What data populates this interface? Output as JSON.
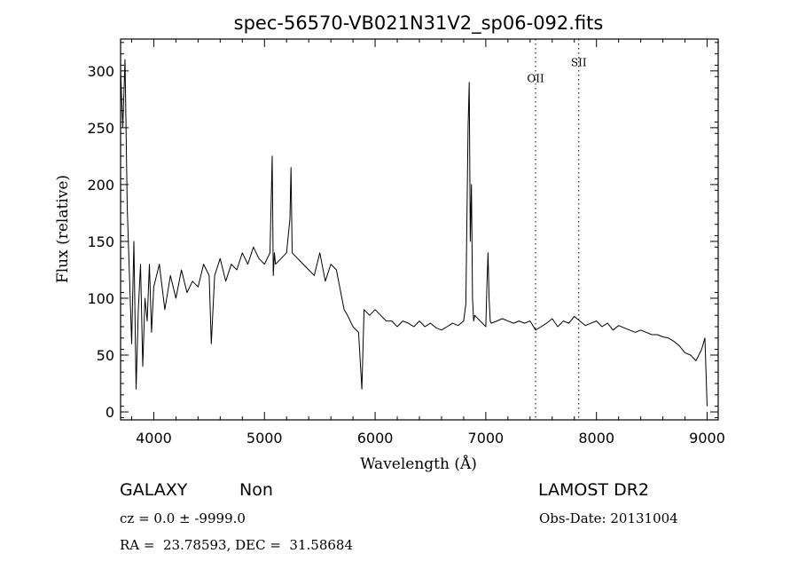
{
  "chart_data": {
    "type": "line",
    "title": "spec-56570-VB021N31V2_sp06-092.fits",
    "xlabel": "Wavelength (Å)",
    "ylabel": "Flux (relative)",
    "xlim": [
      3700,
      9100
    ],
    "ylim": [
      -7,
      328
    ],
    "xticks": [
      4000,
      5000,
      6000,
      7000,
      8000,
      9000
    ],
    "yticks": [
      0,
      50,
      100,
      150,
      200,
      250,
      300
    ],
    "grid": false,
    "line_color": "#000000",
    "annotations": [
      {
        "label": "OII",
        "x": 7450,
        "label_y": 290
      },
      {
        "label": "SII",
        "x": 7840,
        "label_y": 304
      }
    ],
    "series": [
      {
        "x": [
          3700,
          3720,
          3740,
          3760,
          3780,
          3800,
          3820,
          3840,
          3860,
          3880,
          3900,
          3920,
          3940,
          3960,
          3980,
          4000,
          4050,
          4100,
          4150,
          4200,
          4250,
          4300,
          4350,
          4400,
          4450,
          4500,
          4520,
          4550,
          4600,
          4650,
          4700,
          4750,
          4800,
          4850,
          4900,
          4950,
          5000,
          5050,
          5070,
          5080,
          5090,
          5100,
          5150,
          5200,
          5230,
          5240,
          5250,
          5300,
          5350,
          5400,
          5450,
          5500,
          5550,
          5600,
          5650,
          5680,
          5700,
          5720,
          5750,
          5800,
          5850,
          5880,
          5900,
          5950,
          6000,
          6050,
          6100,
          6150,
          6200,
          6250,
          6300,
          6350,
          6400,
          6450,
          6500,
          6550,
          6600,
          6650,
          6700,
          6750,
          6800,
          6820,
          6840,
          6850,
          6860,
          6870,
          6880,
          6890,
          6900,
          6950,
          7000,
          7010,
          7020,
          7030,
          7040,
          7050,
          7100,
          7150,
          7200,
          7250,
          7300,
          7350,
          7400,
          7450,
          7500,
          7550,
          7600,
          7650,
          7700,
          7750,
          7800,
          7850,
          7900,
          7950,
          8000,
          8050,
          8100,
          8150,
          8200,
          8250,
          8300,
          8350,
          8400,
          8450,
          8500,
          8550,
          8600,
          8650,
          8700,
          8750,
          8800,
          8850,
          8900,
          8950,
          8980,
          9000
        ],
        "y": [
          300,
          250,
          310,
          180,
          120,
          60,
          150,
          20,
          90,
          130,
          40,
          100,
          80,
          130,
          70,
          110,
          130,
          90,
          120,
          100,
          125,
          105,
          115,
          110,
          130,
          120,
          60,
          120,
          135,
          115,
          130,
          125,
          140,
          130,
          145,
          135,
          130,
          140,
          225,
          120,
          140,
          130,
          135,
          140,
          170,
          215,
          140,
          135,
          130,
          125,
          120,
          140,
          115,
          130,
          125,
          110,
          100,
          90,
          85,
          75,
          70,
          20,
          90,
          85,
          90,
          85,
          80,
          80,
          75,
          80,
          78,
          75,
          80,
          75,
          78,
          74,
          72,
          75,
          78,
          76,
          80,
          95,
          250,
          290,
          150,
          200,
          100,
          80,
          85,
          80,
          75,
          110,
          140,
          100,
          80,
          78,
          80,
          82,
          80,
          78,
          80,
          78,
          80,
          72,
          75,
          78,
          82,
          75,
          80,
          78,
          84,
          80,
          76,
          78,
          80,
          75,
          78,
          72,
          76,
          74,
          72,
          70,
          72,
          70,
          68,
          68,
          66,
          65,
          62,
          58,
          52,
          50,
          45,
          55,
          65,
          5
        ]
      }
    ]
  },
  "info": {
    "object_class": "GALAXY",
    "subclass": "Non",
    "survey": "LAMOST DR2",
    "cz": "cz = 0.0 ± -9999.0",
    "obs_date": "Obs-Date: 20131004",
    "coords": "RA =  23.78593, DEC =  31.58684"
  }
}
